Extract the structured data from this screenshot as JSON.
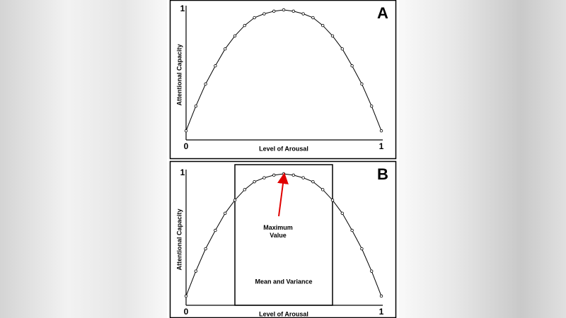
{
  "chart_data": [
    {
      "type": "line",
      "panel_label": "A",
      "x_label": "Level of Arousal",
      "y_label": "Attentional Capacity",
      "x": [
        0,
        0.05,
        0.1,
        0.15,
        0.2,
        0.25,
        0.3,
        0.35,
        0.4,
        0.45,
        0.5,
        0.55,
        0.6,
        0.65,
        0.7,
        0.75,
        0.8,
        0.85,
        0.9,
        0.95,
        1
      ],
      "values": [
        0.07,
        0.26,
        0.43,
        0.57,
        0.7,
        0.8,
        0.88,
        0.94,
        0.97,
        0.99,
        1,
        0.99,
        0.97,
        0.94,
        0.88,
        0.8,
        0.7,
        0.57,
        0.43,
        0.26,
        0.07
      ],
      "color": "#000000",
      "xlim": [
        0,
        1
      ],
      "ylim": [
        0,
        1
      ],
      "xticks": [
        0,
        1
      ],
      "yticks": [
        1
      ]
    },
    {
      "type": "line",
      "panel_label": "B",
      "x_label": "Level of Arousal",
      "y_label": "Attentional Capacity",
      "x": [
        0,
        0.05,
        0.1,
        0.15,
        0.2,
        0.25,
        0.3,
        0.35,
        0.4,
        0.45,
        0.5,
        0.55,
        0.6,
        0.65,
        0.7,
        0.75,
        0.8,
        0.85,
        0.9,
        0.95,
        1
      ],
      "values": [
        0.07,
        0.26,
        0.43,
        0.57,
        0.7,
        0.8,
        0.88,
        0.94,
        0.97,
        0.99,
        1,
        0.99,
        0.97,
        0.94,
        0.88,
        0.8,
        0.7,
        0.57,
        0.43,
        0.26,
        0.07
      ],
      "color": "#000000",
      "xlim": [
        0,
        1
      ],
      "ylim": [
        0,
        1
      ],
      "xticks": [
        0,
        1
      ],
      "yticks": [
        1
      ],
      "region": {
        "label": "Mean and Variance",
        "x": [
          0.25,
          0.75
        ]
      },
      "annotation": {
        "text": "Maximum Value",
        "x": 0.5,
        "y": 1,
        "color": "#e00000"
      }
    }
  ]
}
